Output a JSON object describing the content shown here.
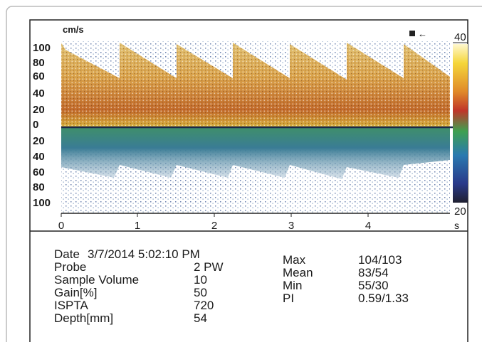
{
  "plot": {
    "y_unit": "cm/s",
    "y_labels": [
      "100",
      "80",
      "60",
      "40",
      "20",
      "0",
      "20",
      "40",
      "60",
      "80",
      "100"
    ],
    "x_labels": [
      "0",
      "1",
      "2",
      "3",
      "4"
    ],
    "x_unit": "s",
    "colorbar_top": "40",
    "colorbar_bottom": "20"
  },
  "info": {
    "left": [
      {
        "label": "Date",
        "value": "3/7/2014 5:02:10 PM"
      },
      {
        "label": "Probe",
        "value": "2 PW"
      },
      {
        "label": "Sample Volume",
        "value": "10"
      },
      {
        "label": "Gain[%]",
        "value": "50"
      },
      {
        "label": "ISPTA",
        "value": "720"
      },
      {
        "label": "Depth[mm]",
        "value": "54"
      }
    ],
    "right": [
      {
        "label": "Max",
        "value": "104/103"
      },
      {
        "label": "Mean",
        "value": "83/54"
      },
      {
        "label": "Min",
        "value": "55/30"
      },
      {
        "label": "PI",
        "value": "0.59/1.33"
      }
    ]
  }
}
